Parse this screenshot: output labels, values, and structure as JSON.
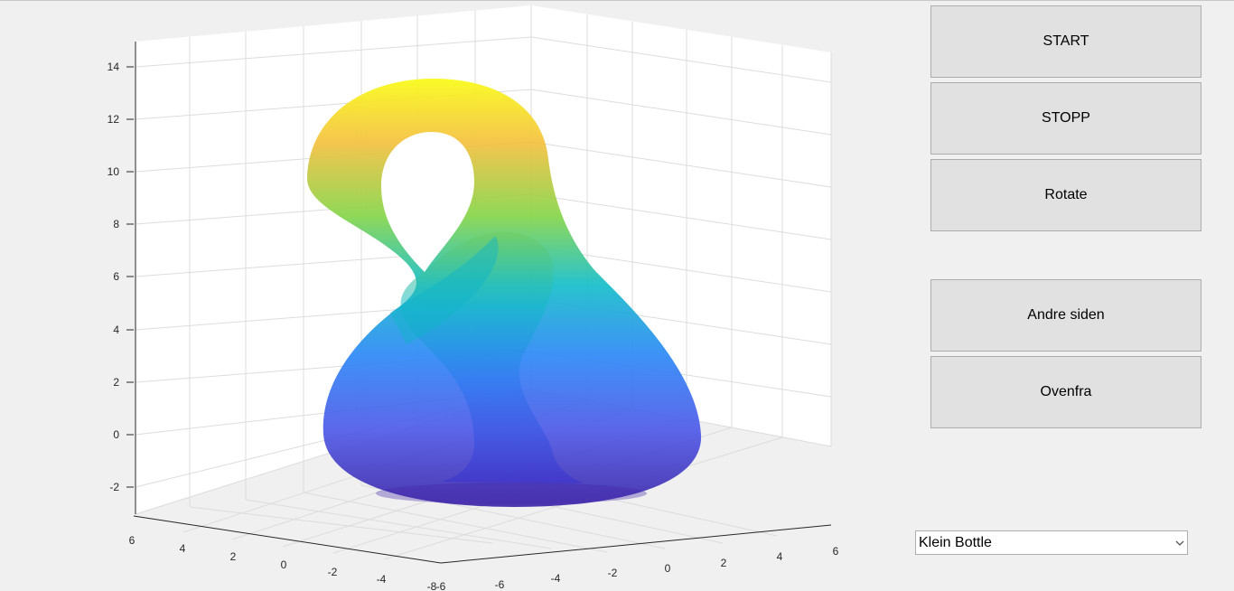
{
  "buttons": {
    "start": "START",
    "stopp": "STOPP",
    "rotate": "Rotate",
    "andre_siden": "Andre siden",
    "ovenfra": "Ovenfra"
  },
  "surface_select": {
    "selected": "Klein Bottle",
    "arrow_icon": "chevron-down-icon"
  },
  "plot": {
    "surface": "Klein Bottle",
    "colormap": [
      "#3e26a8",
      "#2e87f7",
      "#15bec9",
      "#86d549",
      "#f9fb15"
    ],
    "grid": true,
    "z_ticks": [
      "14",
      "12",
      "10",
      "8",
      "6",
      "4",
      "2",
      "0",
      "-2"
    ],
    "x_ticks": [
      "6",
      "4",
      "2",
      "0",
      "-2",
      "-4",
      "-6",
      "-8"
    ],
    "y_ticks": [
      "-6",
      "-4",
      "-2",
      "0",
      "2",
      "4",
      "6"
    ]
  }
}
